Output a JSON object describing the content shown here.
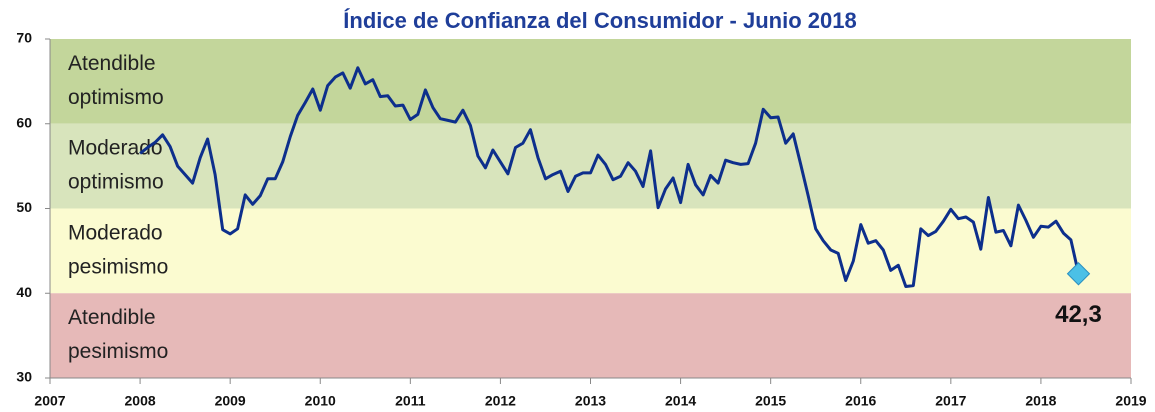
{
  "chart_data": {
    "type": "line",
    "title": "Índice de Confianza del Consumidor - Junio 2018",
    "xlim": [
      2007,
      2019
    ],
    "xticks": [
      2007,
      2008,
      2009,
      2010,
      2011,
      2012,
      2013,
      2014,
      2015,
      2016,
      2017,
      2018,
      2019
    ],
    "ylim": [
      30,
      70
    ],
    "yticks": [
      30,
      40,
      50,
      60,
      70
    ],
    "bands": [
      {
        "from": 60,
        "to": 70,
        "color": "#c3d69b",
        "label": [
          "Atendible",
          "optimismo"
        ]
      },
      {
        "from": 50,
        "to": 60,
        "color": "#d8e4bc",
        "label": [
          "Moderado",
          "optimismo"
        ]
      },
      {
        "from": 40,
        "to": 50,
        "color": "#fbfbd0",
        "label": [
          "Moderado",
          "pesimismo"
        ]
      },
      {
        "from": 30,
        "to": 40,
        "color": "#e6b9b8",
        "label": [
          "Atendible",
          "pesimismo"
        ]
      }
    ],
    "x": [
      2008,
      2008.083,
      2008.167,
      2008.25,
      2008.333,
      2008.417,
      2008.5,
      2008.583,
      2008.667,
      2008.75,
      2008.833,
      2008.917,
      2009,
      2009.083,
      2009.167,
      2009.25,
      2009.333,
      2009.417,
      2009.5,
      2009.583,
      2009.667,
      2009.75,
      2009.833,
      2009.917,
      2010,
      2010.083,
      2010.167,
      2010.25,
      2010.333,
      2010.417,
      2010.5,
      2010.583,
      2010.667,
      2010.75,
      2010.833,
      2010.917,
      2011,
      2011.083,
      2011.167,
      2011.25,
      2011.333,
      2011.417,
      2011.5,
      2011.583,
      2011.667,
      2011.75,
      2011.833,
      2011.917,
      2012,
      2012.083,
      2012.167,
      2012.25,
      2012.333,
      2012.417,
      2012.5,
      2012.583,
      2012.667,
      2012.75,
      2012.833,
      2012.917,
      2013,
      2013.083,
      2013.167,
      2013.25,
      2013.333,
      2013.417,
      2013.5,
      2013.583,
      2013.667,
      2013.75,
      2013.833,
      2013.917,
      2014,
      2014.083,
      2014.167,
      2014.25,
      2014.333,
      2014.417,
      2014.5,
      2014.583,
      2014.667,
      2014.75,
      2014.833,
      2014.917,
      2015,
      2015.083,
      2015.167,
      2015.25,
      2015.333,
      2015.417,
      2015.5,
      2015.583,
      2015.667,
      2015.75,
      2015.833,
      2015.917,
      2016,
      2016.083,
      2016.167,
      2016.25,
      2016.333,
      2016.417,
      2016.5,
      2016.583,
      2016.667,
      2016.75,
      2016.833,
      2016.917,
      2017,
      2017.083,
      2017.167,
      2017.25,
      2017.333,
      2017.417,
      2017.5,
      2017.583,
      2017.667,
      2017.75,
      2017.833,
      2017.917,
      2018,
      2018.083,
      2018.167,
      2018.25,
      2018.333,
      2018.417
    ],
    "series": [
      {
        "color": "#0d2f8c",
        "values": [
          56.5,
          57.2,
          57.8,
          58.7,
          57.3,
          55.0,
          54.0,
          53.0,
          56.0,
          58.2,
          54.0,
          47.5,
          47.0,
          47.6,
          51.6,
          50.5,
          51.5,
          53.5,
          53.5,
          55.5,
          58.5,
          61.0,
          62.5,
          64.1,
          61.6,
          64.5,
          65.5,
          66.0,
          64.2,
          66.6,
          64.7,
          65.2,
          63.2,
          63.3,
          62.1,
          62.2,
          60.5,
          61.1,
          64.0,
          61.9,
          60.6,
          60.4,
          60.2,
          61.6,
          59.8,
          56.2,
          54.8,
          56.9,
          55.5,
          54.1,
          57.2,
          57.7,
          59.3,
          56.0,
          53.5,
          54.0,
          54.4,
          52.0,
          53.8,
          54.2,
          54.2,
          56.3,
          55.2,
          53.4,
          53.8,
          55.4,
          54.4,
          52.6,
          56.8,
          50.1,
          52.3,
          53.6,
          50.7,
          55.2,
          52.8,
          51.6,
          53.9,
          53.0,
          55.7,
          55.4,
          55.2,
          55.3,
          57.7,
          61.7,
          60.7,
          60.8,
          57.7,
          58.8,
          55.2,
          51.5,
          47.6,
          46.2,
          45.1,
          44.7,
          41.5,
          43.8,
          48.1,
          45.9,
          46.2,
          45.1,
          42.7,
          43.3,
          40.8,
          40.9,
          47.6,
          46.8,
          47.3,
          48.5,
          49.9,
          48.8,
          49.0,
          48.4,
          45.2,
          51.3,
          47.2,
          47.4,
          45.6,
          50.4,
          48.6,
          46.6,
          47.9,
          47.8,
          48.5,
          47.1,
          46.3,
          42.3
        ]
      }
    ],
    "annotation": {
      "x": 2018.417,
      "y": 42.3,
      "text": "42,3",
      "color": "#4bc0e6"
    }
  }
}
